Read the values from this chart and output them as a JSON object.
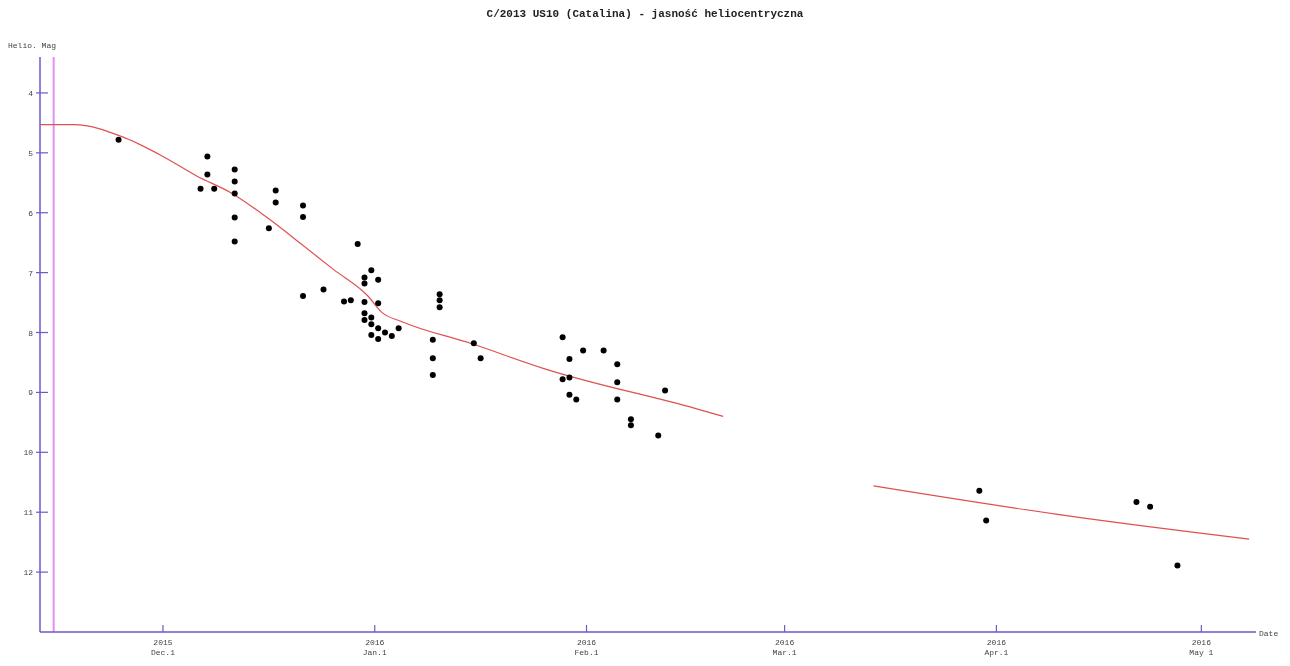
{
  "chart_data": {
    "type": "scatter",
    "title": "C/2013 US10 (Catalina) - jasność heliocentryczna",
    "xlabel": "Date",
    "ylabel": "Helio. Mag",
    "xlim": [
      "2015-11-13",
      "2016-05-09"
    ],
    "xticks": [
      {
        "value": "2015-12-01",
        "label": "2015\nDec.1"
      },
      {
        "value": "2016-01-01",
        "label": "2016\nJan.1"
      },
      {
        "value": "2016-02-01",
        "label": "2016\nFeb.1"
      },
      {
        "value": "2016-03-01",
        "label": "2016\nMar.1"
      },
      {
        "value": "2016-04-01",
        "label": "2016\nApr.1"
      },
      {
        "value": "2016-05-01",
        "label": "2016\nMay 1"
      }
    ],
    "ylim": [
      13,
      3.4
    ],
    "yticks": [
      4,
      5,
      6,
      7,
      8,
      9,
      10,
      11,
      12
    ],
    "grid": false,
    "ref_lines": [
      {
        "axis": "x",
        "value": "2015-11-15",
        "color": "#e090f0"
      }
    ],
    "series": [
      {
        "type": "scatter",
        "color": "#000000",
        "marker": "circle",
        "x": [
          "2015-11-24T12:00",
          "2015-12-07T12:00",
          "2015-12-07T12:00",
          "2015-12-06T12:00",
          "2015-12-08T12:00",
          "2015-12-11T12:00",
          "2015-12-11T12:00",
          "2015-12-11T12:00",
          "2015-12-11T12:00",
          "2015-12-11T12:00",
          "2015-12-17T12:00",
          "2015-12-17T12:00",
          "2015-12-16T12:00",
          "2015-12-21T12:00",
          "2015-12-21T12:00",
          "2015-12-21T12:00",
          "2015-12-24T12:00",
          "2015-12-27T12:00",
          "2015-12-28T12:00",
          "2015-12-29T12:00",
          "2015-12-30T12:00",
          "2015-12-30T12:00",
          "2015-12-31T12:00",
          "2016-01-01T12:00",
          "2015-12-30T12:00",
          "2016-01-01T12:00",
          "2015-12-30T12:00",
          "2015-12-30T12:00",
          "2015-12-31T12:00",
          "2015-12-31T12:00",
          "2016-01-01T12:00",
          "2016-01-02T12:00",
          "2016-01-03T12:00",
          "2016-01-04T12:00",
          "2015-12-31T12:00",
          "2016-01-01T12:00",
          "2016-01-10T12:00",
          "2016-01-10T12:00",
          "2016-01-10T12:00",
          "2016-01-09T12:00",
          "2016-01-09T12:00",
          "2016-01-09T12:00",
          "2016-01-15T12:00",
          "2016-01-16T12:00",
          "2016-01-28T12:00",
          "2016-01-29T12:00",
          "2016-01-28T12:00",
          "2016-01-29T12:00",
          "2016-01-29T12:00",
          "2016-01-30T12:00",
          "2016-01-31T12:00",
          "2016-02-03T12:00",
          "2016-02-05T12:00",
          "2016-02-05T12:00",
          "2016-02-05T12:00",
          "2016-02-07T12:00",
          "2016-02-07T12:00",
          "2016-02-11T12:00",
          "2016-02-12T12:00",
          "2016-03-29T12:00",
          "2016-03-30T12:00",
          "2016-04-21T12:00",
          "2016-04-23T12:00",
          "2016-04-27T12:00"
        ],
        "values": [
          4.78,
          5.06,
          5.36,
          5.6,
          5.6,
          5.28,
          5.48,
          5.68,
          6.08,
          6.48,
          5.63,
          5.83,
          6.26,
          5.88,
          6.07,
          7.39,
          7.28,
          7.48,
          7.46,
          6.52,
          7.08,
          7.18,
          6.96,
          7.12,
          7.49,
          7.51,
          7.68,
          7.79,
          7.75,
          7.86,
          7.93,
          8.0,
          8.06,
          7.93,
          8.04,
          8.11,
          7.36,
          7.46,
          7.58,
          8.12,
          8.43,
          8.71,
          8.18,
          8.43,
          8.08,
          8.44,
          8.78,
          8.75,
          9.04,
          9.12,
          8.3,
          8.3,
          8.53,
          8.83,
          9.12,
          9.45,
          9.55,
          9.72,
          8.97,
          10.64,
          11.14,
          10.83,
          10.91,
          11.89
        ]
      },
      {
        "type": "line",
        "color": "#e05050",
        "x": [
          "2015-11-13",
          "2015-11-18",
          "2015-11-25",
          "2015-12-01",
          "2015-12-06",
          "2015-12-11",
          "2015-12-16",
          "2015-12-21",
          "2015-12-26",
          "2015-12-31",
          "2016-01-02",
          "2016-01-05",
          "2016-01-15",
          "2016-01-26",
          "2016-02-17",
          "2016-02-21"
        ],
        "values": [
          4.53,
          4.53,
          4.73,
          5.06,
          5.39,
          5.67,
          6.06,
          6.5,
          6.95,
          7.39,
          7.66,
          7.82,
          8.18,
          8.61,
          9.27,
          9.4
        ]
      },
      {
        "type": "line",
        "color": "#e05050",
        "x": [
          "2016-03-14",
          "2016-04-12",
          "2016-05-08"
        ],
        "values": [
          10.56,
          11.07,
          11.45
        ]
      }
    ]
  }
}
